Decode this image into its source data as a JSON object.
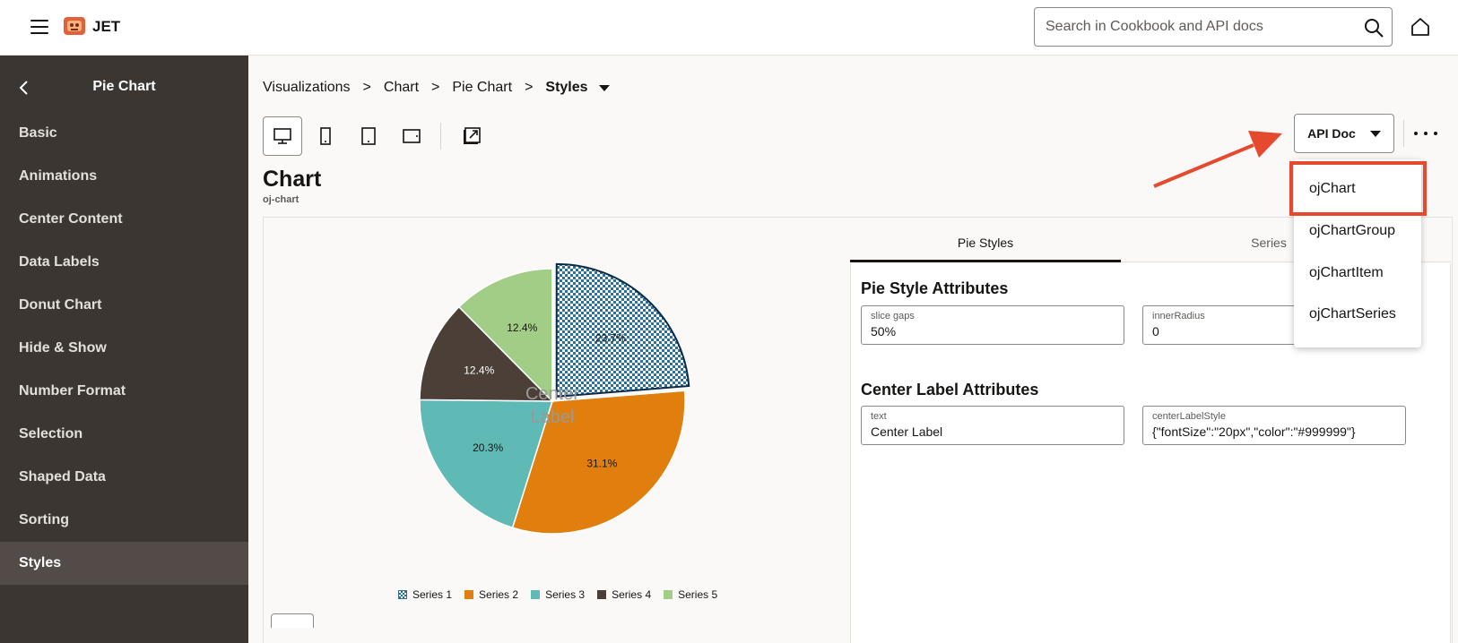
{
  "header": {
    "brand": "JET",
    "search_placeholder": "Search in Cookbook and API docs"
  },
  "sidebar": {
    "title": "Pie Chart",
    "items": [
      {
        "label": "Basic"
      },
      {
        "label": "Animations"
      },
      {
        "label": "Center Content"
      },
      {
        "label": "Data Labels"
      },
      {
        "label": "Donut Chart"
      },
      {
        "label": "Hide & Show"
      },
      {
        "label": "Number Format"
      },
      {
        "label": "Selection"
      },
      {
        "label": "Shaped Data"
      },
      {
        "label": "Sorting"
      },
      {
        "label": "Styles"
      }
    ],
    "active_index": 10
  },
  "breadcrumb": [
    "Visualizations",
    "Chart",
    "Pie Chart",
    "Styles"
  ],
  "toolbar": {
    "api_doc_label": "API Doc"
  },
  "component": {
    "title": "Chart",
    "tag": "oj-chart"
  },
  "chart_data": {
    "type": "pie",
    "series": [
      {
        "name": "Series 1",
        "value": 23.7,
        "label": "23.7%"
      },
      {
        "name": "Series 2",
        "value": 31.1,
        "label": "31.1%"
      },
      {
        "name": "Series 3",
        "value": 20.3,
        "label": "20.3%"
      },
      {
        "name": "Series 4",
        "value": 12.4,
        "label": "12.4%"
      },
      {
        "name": "Series 5",
        "value": 12.4,
        "label": "12.4%"
      }
    ],
    "colors": [
      "#2b6f9e",
      "#e07f0e",
      "#5fbab5",
      "#4b3f38",
      "#a1cd86"
    ],
    "selected": "Series 1",
    "center_label": "Center Label",
    "center_label_color": "#999999",
    "legend": "bottom"
  },
  "panel": {
    "tabs": [
      "Pie Styles",
      "Series"
    ],
    "pie_section_title": "Pie Style Attributes",
    "fields_pie": [
      {
        "label": "slice gaps",
        "value": "50%"
      },
      {
        "label": "innerRadius",
        "value": "0"
      }
    ],
    "center_section_title": "Center Label Attributes",
    "fields_center": [
      {
        "label": "text",
        "value": "Center Label"
      },
      {
        "label": "centerLabelStyle",
        "value": "{\"fontSize\":\"20px\",\"color\":\"#999999\"}"
      }
    ]
  },
  "api_dropdown": {
    "items": [
      "ojChart",
      "ojChartGroup",
      "ojChartItem",
      "ojChartSeries"
    ],
    "highlighted": "ojChart"
  },
  "colors": {
    "sidebar_bg": "#3c3632",
    "annotation": "#e64a2e"
  }
}
